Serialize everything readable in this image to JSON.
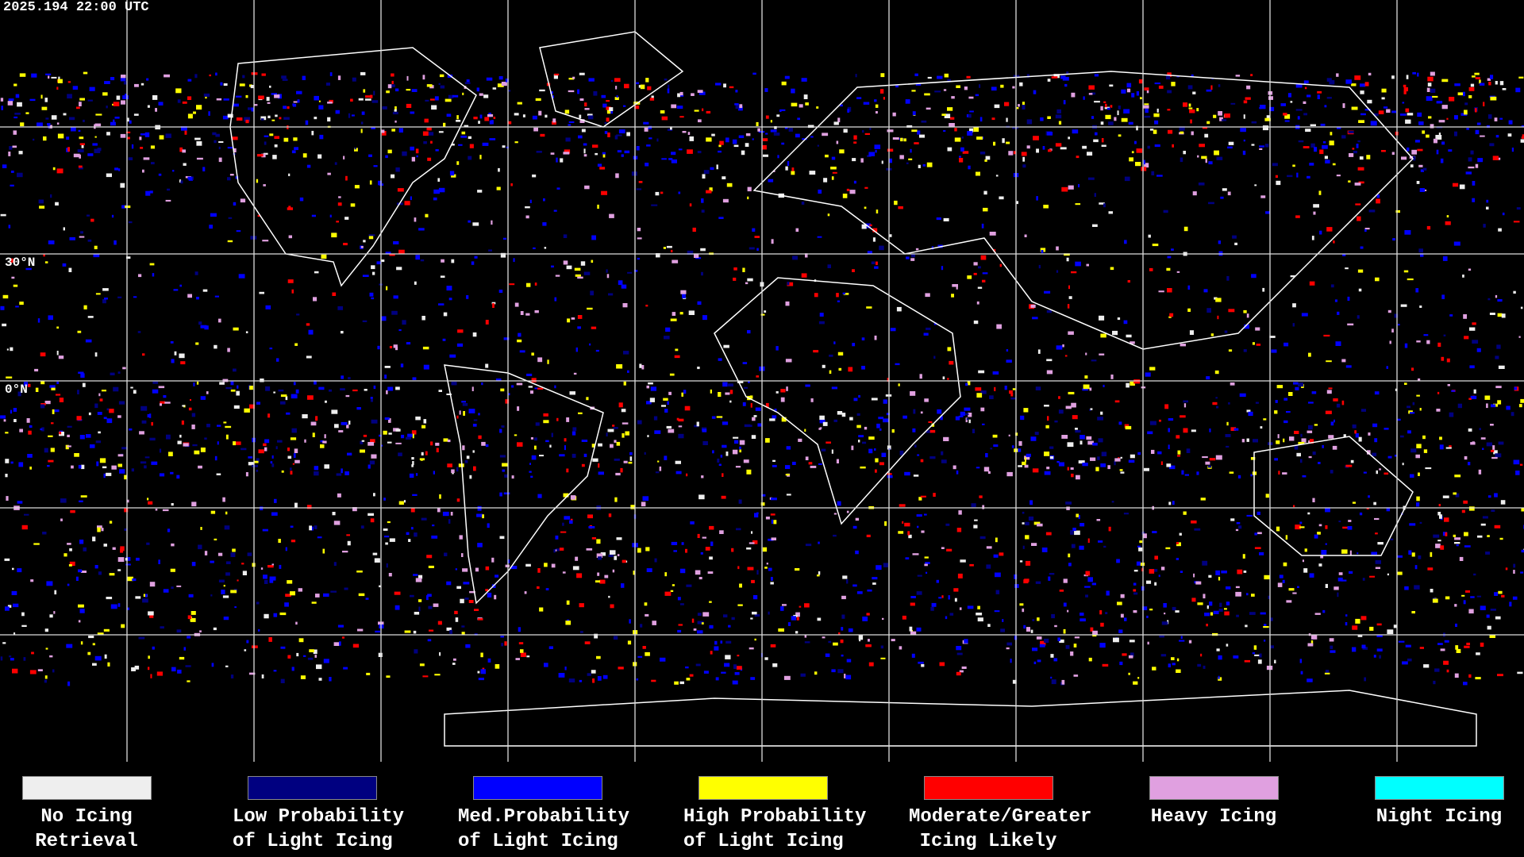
{
  "header": {
    "timestamp": "2025.194 22:00 UTC"
  },
  "map": {
    "latitude_labels": [
      "30°N",
      "0°N"
    ]
  },
  "legend": [
    {
      "color": "#eeeeee",
      "lines": [
        "No Icing",
        "Retrieval"
      ]
    },
    {
      "color": "#000080",
      "lines": [
        "Low Probability",
        "of Light Icing"
      ]
    },
    {
      "color": "#0000ff",
      "lines": [
        "Med.Probability",
        "of Light Icing"
      ]
    },
    {
      "color": "#ffff00",
      "lines": [
        "High Probability",
        "of Light Icing"
      ]
    },
    {
      "color": "#ff0000",
      "lines": [
        "Moderate/Greater",
        "Icing Likely"
      ]
    },
    {
      "color": "#e0a0e0",
      "lines": [
        "Heavy Icing"
      ]
    },
    {
      "color": "#00ffff",
      "lines": [
        "Night Icing"
      ]
    }
  ]
}
